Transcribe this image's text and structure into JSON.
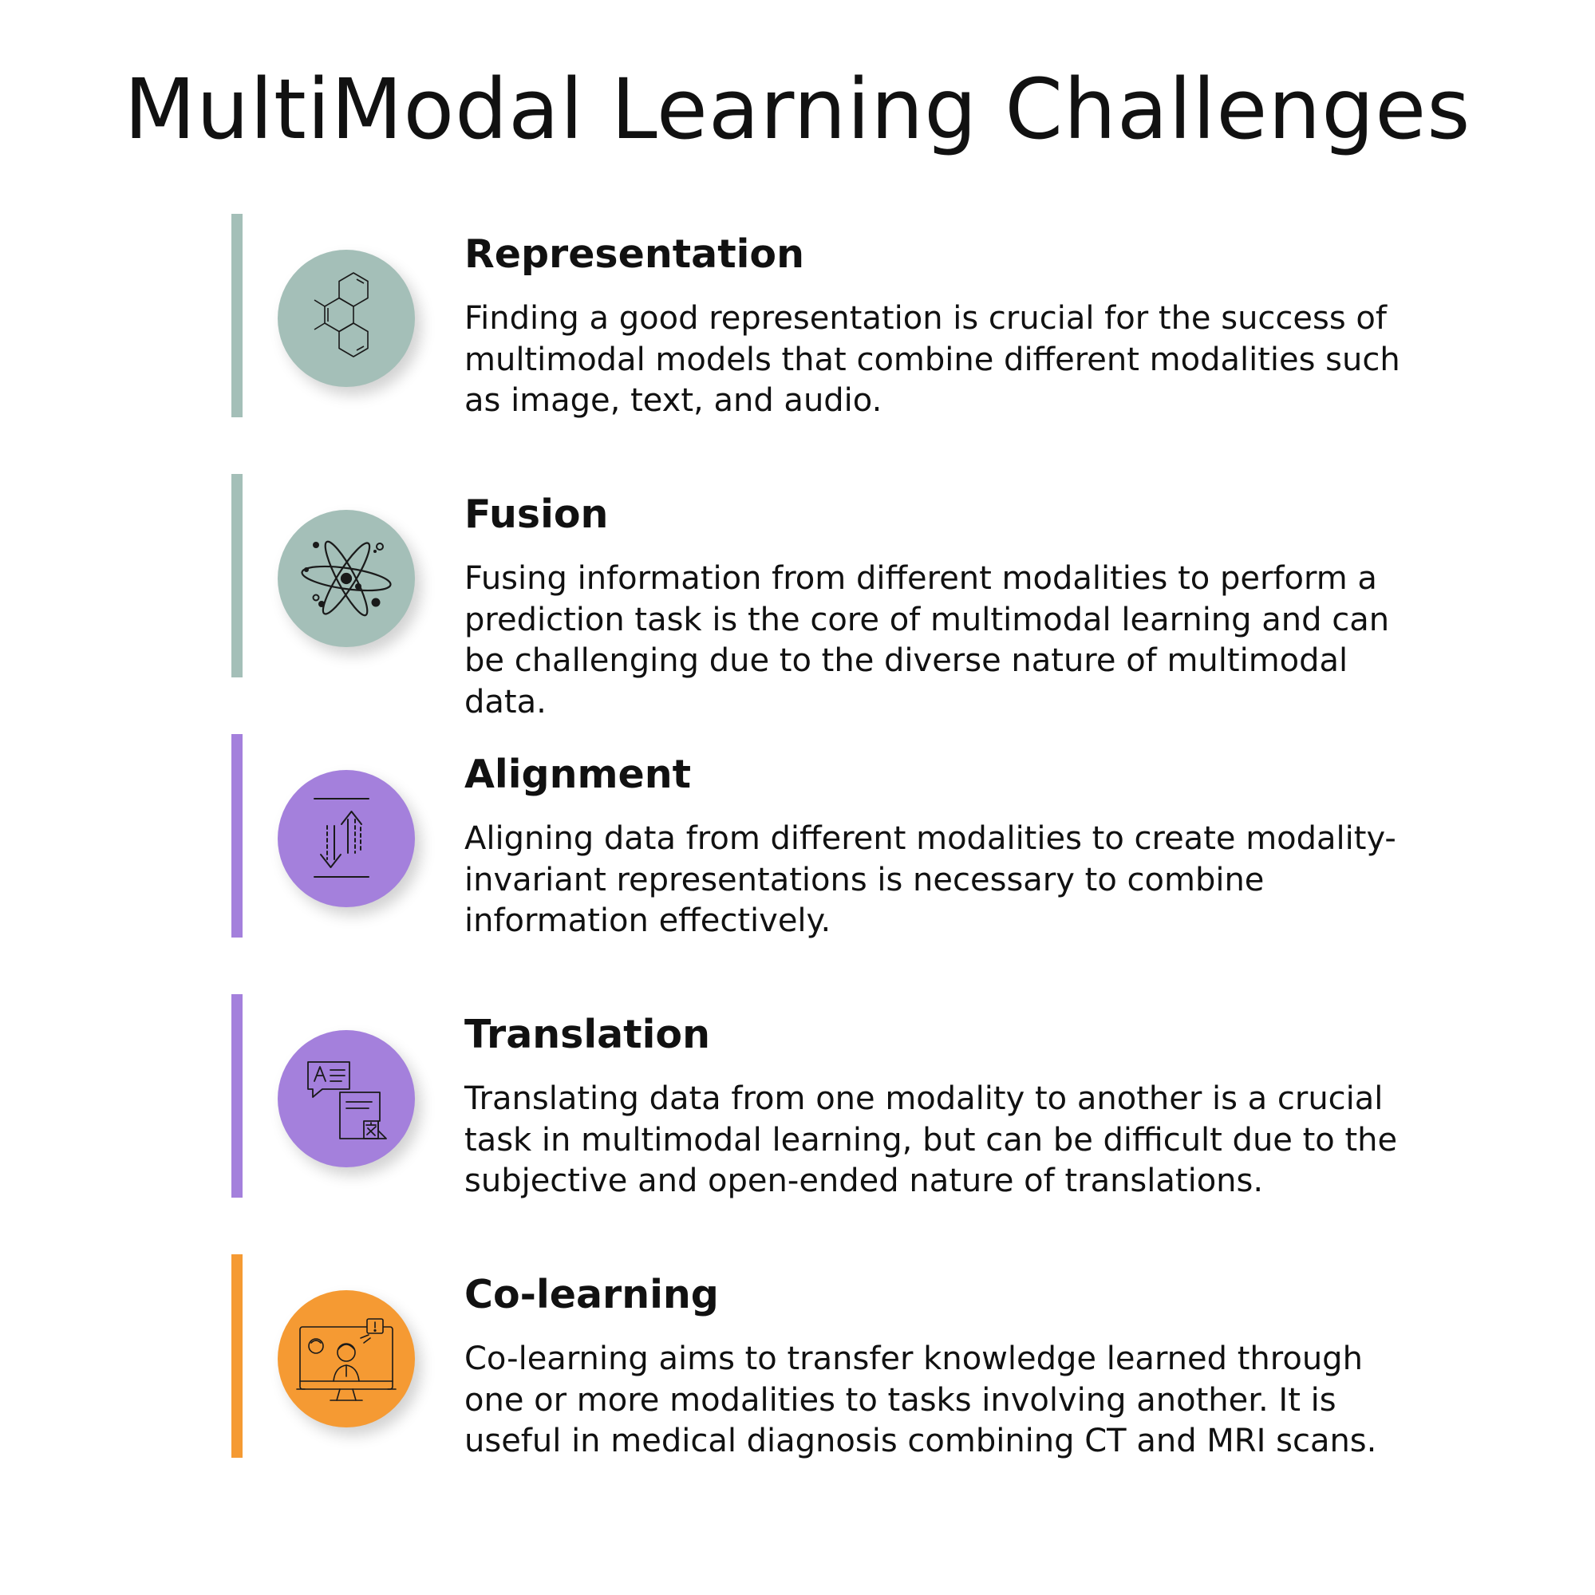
{
  "title": "MultiModal Learning Challenges",
  "colors": {
    "teal": "#a4bfb8",
    "purple": "#a480dc",
    "orange": "#f59a33",
    "icon_stroke": "#1a1a1a"
  },
  "challenges": [
    {
      "title": "Representation",
      "description": "Finding a good representation is crucial for the success of multimodal models that combine different modalities such as image, text, and audio.",
      "icon": "molecule-icon",
      "color": "teal"
    },
    {
      "title": "Fusion",
      "description": "Fusing information from different modalities to perform a prediction task is the core of multimodal learning and can be challenging due to the diverse nature of multimodal data.",
      "icon": "atom-icon",
      "color": "teal"
    },
    {
      "title": "Alignment",
      "description": "Aligning data from different modalities to create modality-invariant representations is necessary to combine information effectively.",
      "icon": "align-arrows-icon",
      "color": "purple"
    },
    {
      "title": "Translation",
      "description": "Translating data from one modality to another is a crucial task in multimodal learning, but can be difficult due to the subjective and open-ended nature of translations.",
      "icon": "translate-icon",
      "color": "purple"
    },
    {
      "title": "Co-learning",
      "description": "Co-learning aims to transfer knowledge learned through one or more modalities to tasks involving another. It is useful in medical diagnosis combining CT and MRI scans.",
      "icon": "online-learning-icon",
      "color": "orange"
    }
  ]
}
